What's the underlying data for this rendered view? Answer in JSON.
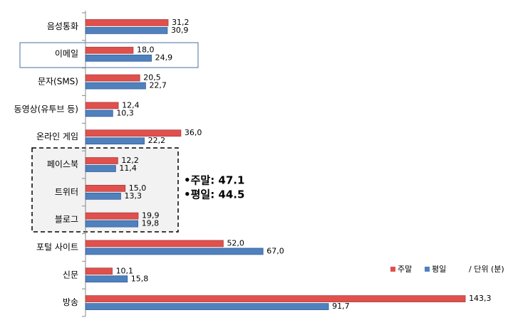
{
  "chart_data": {
    "type": "hbar",
    "categories": [
      "음성통화",
      "이메일",
      "문자(SMS)",
      "동영상(유투브 등)",
      "온라인 게임",
      "페이스북",
      "트위터",
      "블로그",
      "포털 사이트",
      "신문",
      "방송"
    ],
    "series": [
      {
        "name": "주말",
        "color": "#e0504d",
        "values": [
          31.2,
          18.0,
          20.5,
          12.4,
          36.0,
          12.2,
          15.0,
          19.9,
          52.0,
          10.1,
          143.3
        ],
        "value_labels": [
          "31,2",
          "18,0",
          "20,5",
          "12,4",
          "36,0",
          "12,2",
          "15,0",
          "19,9",
          "52,0",
          "10,1",
          "143,3"
        ]
      },
      {
        "name": "평일",
        "color": "#4f81bd",
        "values": [
          30.9,
          24.9,
          22.7,
          10.3,
          22.2,
          11.4,
          13.3,
          19.8,
          67.0,
          15.8,
          91.7
        ],
        "value_labels": [
          "30,9",
          "24,9",
          "22,7",
          "10,3",
          "22,2",
          "11,4",
          "13,3",
          "19,8",
          "67,0",
          "15,8",
          "91,7"
        ]
      }
    ],
    "xlim": [
      0,
      150
    ],
    "unit": "/ 단위 (분)",
    "annotations": [
      "•주말: 47.1",
      "•평일: 44.5"
    ]
  }
}
